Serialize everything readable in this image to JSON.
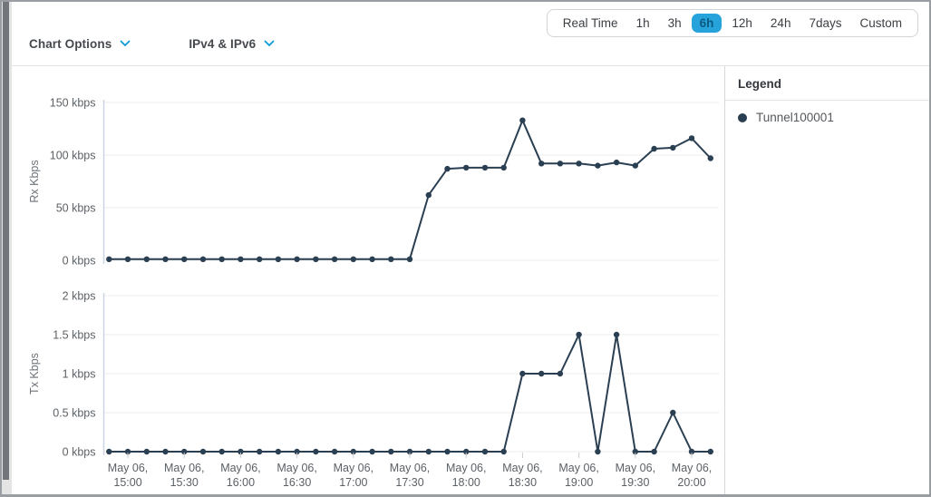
{
  "header": {
    "chart_options_label": "Chart Options",
    "ip_filter_label": "IPv4 & IPv6"
  },
  "time_range": {
    "options": [
      "Real Time",
      "1h",
      "3h",
      "6h",
      "12h",
      "24h",
      "7days",
      "Custom"
    ],
    "selected": "6h"
  },
  "legend": {
    "title": "Legend",
    "items": [
      {
        "label": "Tunnel100001",
        "color": "#2b3f52"
      }
    ]
  },
  "colors": {
    "accent_blue": "#0d9bd7",
    "series_line": "#2b3f52",
    "selected_pill_bg": "#27a3dc",
    "selected_pill_text": "#0b5a80"
  },
  "chart_data": [
    {
      "type": "line",
      "title": "Rx Kbps",
      "ylabel": "Rx Kbps",
      "unit": "kbps",
      "ylim": [
        0,
        150
      ],
      "grid": true,
      "legend_position": "right",
      "yticks": [
        {
          "value": 150,
          "label": "150 kbps"
        },
        {
          "value": 100,
          "label": "100 kbps"
        },
        {
          "value": 50,
          "label": "50 kbps"
        },
        {
          "value": 0,
          "label": "0 kbps"
        }
      ],
      "x": [
        "14:50",
        "15:00",
        "15:10",
        "15:20",
        "15:30",
        "15:40",
        "15:50",
        "16:00",
        "16:10",
        "16:20",
        "16:30",
        "16:40",
        "16:50",
        "17:00",
        "17:10",
        "17:20",
        "17:30",
        "17:40",
        "17:50",
        "18:00",
        "18:10",
        "18:20",
        "18:30",
        "18:40",
        "18:50",
        "19:00",
        "19:10",
        "19:20",
        "19:30",
        "19:40",
        "19:50",
        "20:00",
        "20:10"
      ],
      "series": [
        {
          "name": "Tunnel100001",
          "values": [
            1,
            1,
            1,
            1,
            1,
            1,
            1,
            1,
            1,
            1,
            1,
            1,
            1,
            1,
            1,
            1,
            1,
            62,
            87,
            88,
            88,
            88,
            133,
            92,
            92,
            92,
            90,
            93,
            90,
            106,
            107,
            116,
            97
          ]
        }
      ]
    },
    {
      "type": "line",
      "title": "Tx Kbps",
      "ylabel": "Tx Kbps",
      "unit": "kbps",
      "ylim": [
        0,
        2
      ],
      "grid": true,
      "legend_position": "right",
      "yticks": [
        {
          "value": 2,
          "label": "2 kbps"
        },
        {
          "value": 1.5,
          "label": "1.5 kbps"
        },
        {
          "value": 1,
          "label": "1 kbps"
        },
        {
          "value": 0.5,
          "label": "0.5 kbps"
        },
        {
          "value": 0,
          "label": "0 kbps"
        }
      ],
      "x": [
        "14:50",
        "15:00",
        "15:10",
        "15:20",
        "15:30",
        "15:40",
        "15:50",
        "16:00",
        "16:10",
        "16:20",
        "16:30",
        "16:40",
        "16:50",
        "17:00",
        "17:10",
        "17:20",
        "17:30",
        "17:40",
        "17:50",
        "18:00",
        "18:10",
        "18:20",
        "18:30",
        "18:40",
        "18:50",
        "19:00",
        "19:10",
        "19:20",
        "19:30",
        "19:40",
        "19:50",
        "20:00",
        "20:10"
      ],
      "series": [
        {
          "name": "Tunnel100001",
          "values": [
            0,
            0,
            0,
            0,
            0,
            0,
            0,
            0,
            0,
            0,
            0,
            0,
            0,
            0,
            0,
            0,
            0,
            0,
            0,
            0,
            0,
            0,
            1,
            1,
            1,
            1.5,
            0,
            1.5,
            0,
            0,
            0.5,
            0,
            0
          ]
        }
      ],
      "x_axis_tick_labels": {
        "date_line": "May 06,",
        "times": [
          "15:00",
          "15:30",
          "16:00",
          "16:30",
          "17:00",
          "17:30",
          "18:00",
          "18:30",
          "19:00",
          "19:30",
          "20:00"
        ]
      }
    }
  ]
}
